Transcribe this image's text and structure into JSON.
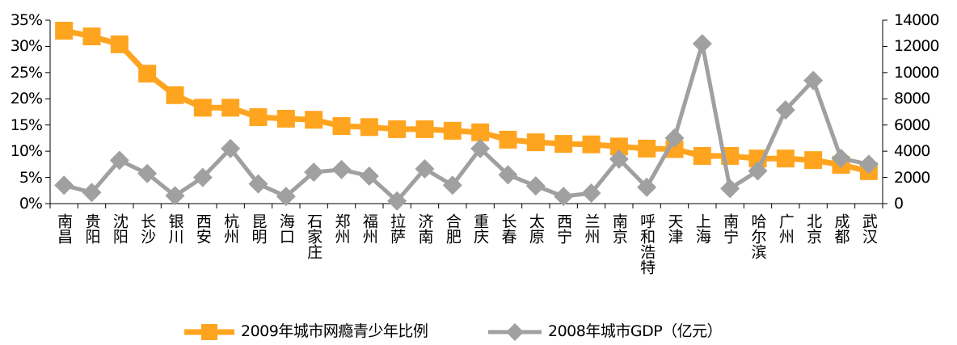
{
  "chart_data": {
    "type": "line",
    "categories": [
      "南昌",
      "贵阳",
      "沈阳",
      "长沙",
      "银川",
      "西安",
      "杭州",
      "昆明",
      "海口",
      "石家庄",
      "郑州",
      "福州",
      "拉萨",
      "济南",
      "合肥",
      "重庆",
      "长春",
      "太原",
      "西宁",
      "兰州",
      "南京",
      "呼和浩特",
      "天津",
      "上海",
      "南宁",
      "哈尔滨",
      "广州",
      "北京",
      "成都",
      "武汉"
    ],
    "series": [
      {
        "name": "2009年城市网瘾青少年比例",
        "axis": "left",
        "marker": "square",
        "color": "#FFA41F",
        "values": [
          33.0,
          31.9,
          30.4,
          24.8,
          20.7,
          18.3,
          18.3,
          16.5,
          16.2,
          16.0,
          14.8,
          14.6,
          14.2,
          14.2,
          13.9,
          13.6,
          12.2,
          11.7,
          11.4,
          11.3,
          10.9,
          10.5,
          10.4,
          9.1,
          9.1,
          8.6,
          8.6,
          8.3,
          7.4,
          6.2
        ]
      },
      {
        "name": "2008年城市GDP（亿元）",
        "axis": "right",
        "marker": "diamond",
        "color": "#A0A0A0",
        "values": [
          1400,
          850,
          3300,
          2300,
          600,
          2000,
          4200,
          1500,
          550,
          2400,
          2600,
          2100,
          200,
          2650,
          1400,
          4200,
          2200,
          1350,
          550,
          800,
          3400,
          1250,
          5000,
          12200,
          1150,
          2500,
          7150,
          9400,
          3450,
          3000
        ]
      }
    ],
    "y_left": {
      "range": [
        0,
        35
      ],
      "tick_labels": [
        "0%",
        "5%",
        "10%",
        "15%",
        "20%",
        "25%",
        "30%",
        "35%"
      ]
    },
    "y_right": {
      "range": [
        0,
        14000
      ],
      "tick_labels": [
        "0",
        "2000",
        "4000",
        "6000",
        "8000",
        "10000",
        "12000",
        "14000"
      ]
    },
    "title": "",
    "xlabel": "",
    "ylabel": "",
    "grid": false,
    "legend": "bottom"
  }
}
